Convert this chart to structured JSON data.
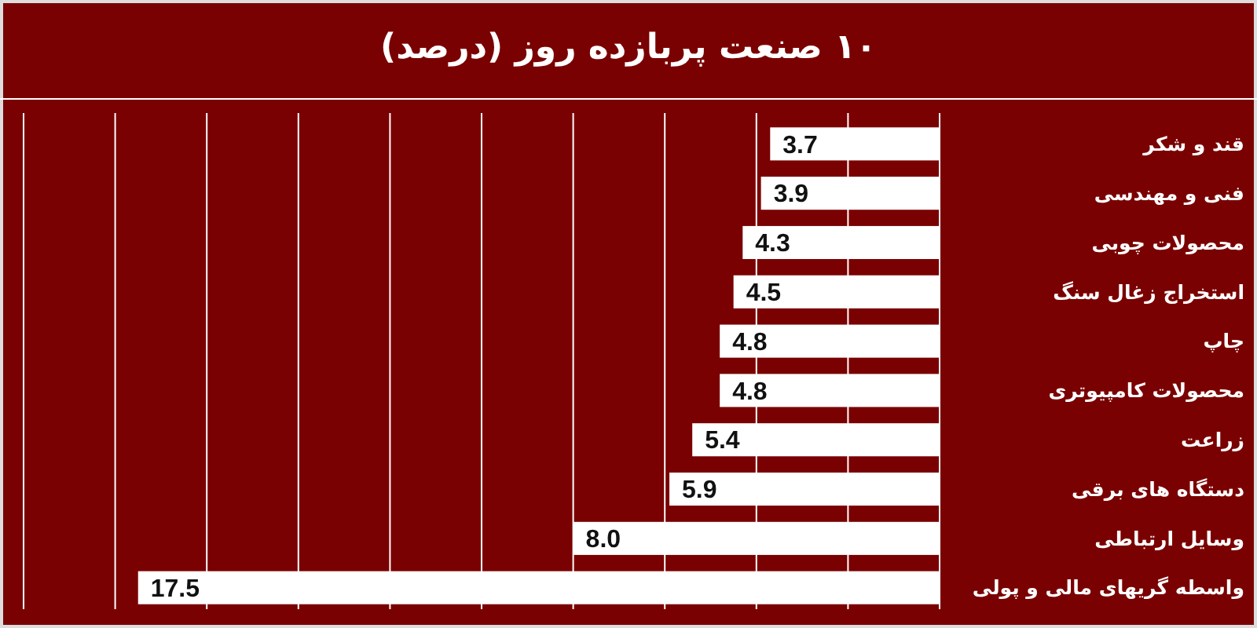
{
  "chart_data": {
    "type": "bar",
    "orientation": "horizontal",
    "title": "۱۰ صنعت پربازده روز (درصد)",
    "categories": [
      "قند و شکر",
      "فنی و مهندسی",
      "محصولات چوبی",
      "استخراج زغال سنگ",
      "چاپ",
      "محصولات کامپیوتری",
      "زراعت",
      "دستگاه های برقی",
      "وسایل ارتباطی",
      "واسطه گریهای مالی و پولی"
    ],
    "values": [
      3.7,
      3.9,
      4.3,
      4.5,
      4.8,
      4.8,
      5.4,
      5.9,
      8.0,
      17.5
    ],
    "color": "#ffffff",
    "value_labels": [
      "3.7",
      "3.9",
      "4.3",
      "4.5",
      "4.8",
      "4.8",
      "5.4",
      "5.9",
      "8.0",
      "17.5"
    ],
    "xlim": [
      20,
      0
    ],
    "xticks": [
      {
        "value": 0,
        "label": null
      },
      {
        "value": 2,
        "label": null
      },
      {
        "value": 4,
        "label": null
      },
      {
        "value": 6,
        "label": null
      },
      {
        "value": 8,
        "label": null
      },
      {
        "value": 10,
        "label": null
      },
      {
        "value": 12,
        "label": null
      },
      {
        "value": 14,
        "label": null
      },
      {
        "value": 16,
        "label": null
      },
      {
        "value": 18,
        "label": null
      },
      {
        "value": 20,
        "label": null
      }
    ],
    "grid": "x"
  }
}
